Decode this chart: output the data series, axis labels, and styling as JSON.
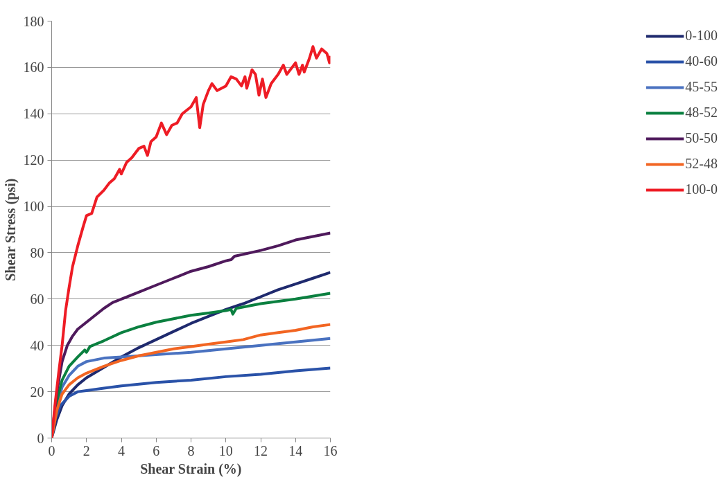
{
  "chart_data": {
    "type": "line",
    "xlabel": "Shear Strain (%)",
    "ylabel": "Shear Stress (psi)",
    "xlim": [
      0,
      16
    ],
    "ylim": [
      0,
      180
    ],
    "xticks": [
      0,
      2,
      4,
      6,
      8,
      10,
      12,
      14,
      16
    ],
    "yticks": [
      0,
      20,
      40,
      60,
      80,
      100,
      120,
      140,
      160,
      180
    ],
    "grid": "y",
    "legend": "right",
    "marker": "none",
    "line_style": "solid",
    "series": [
      {
        "name": "0-100",
        "color": "#1f2a6e",
        "x": [
          0,
          0.3,
          0.6,
          1,
          1.5,
          2,
          3,
          4,
          5,
          6,
          7,
          8,
          9,
          10,
          11,
          12,
          13,
          14,
          15,
          16
        ],
        "values": [
          0,
          8,
          14,
          19,
          23,
          26,
          30.5,
          35,
          39,
          42.5,
          46,
          49.5,
          52.5,
          55.5,
          58,
          61,
          64,
          66.5,
          69,
          71.5
        ]
      },
      {
        "name": "40-60",
        "color": "#2a52a8",
        "x": [
          0,
          0.2,
          0.5,
          1,
          1.5,
          2,
          3,
          4,
          6,
          8,
          10,
          12,
          14,
          16
        ],
        "values": [
          0,
          8,
          14,
          18,
          20,
          20.5,
          21.5,
          22.5,
          24,
          25,
          26.5,
          27.5,
          29,
          30.2
        ]
      },
      {
        "name": "45-55",
        "color": "#4a72c0",
        "x": [
          0,
          0.3,
          0.6,
          1,
          1.5,
          2,
          3,
          4,
          6,
          8,
          10,
          12,
          14,
          16
        ],
        "values": [
          0,
          14,
          22,
          27,
          31,
          33,
          34.5,
          35,
          36,
          37,
          38.5,
          40,
          41.5,
          43
        ]
      },
      {
        "name": "48-52",
        "color": "#0b8040",
        "x": [
          0,
          0.3,
          0.6,
          1,
          1.5,
          1.9,
          2,
          2.2,
          3,
          4,
          5,
          6,
          7,
          8,
          9,
          10,
          10.3,
          10.4,
          10.6,
          12,
          14,
          16
        ],
        "values": [
          0,
          16,
          25,
          31,
          35,
          38,
          37,
          39.5,
          42,
          45.5,
          48,
          50,
          51.5,
          53,
          54,
          55,
          55.5,
          53.5,
          56,
          58,
          60,
          62.5
        ]
      },
      {
        "name": "50-50",
        "color": "#4f1a5c",
        "x": [
          0,
          0.3,
          0.6,
          0.9,
          1.2,
          1.5,
          2,
          2.5,
          3,
          3.5,
          4,
          5,
          6,
          7,
          8,
          9,
          10,
          10.3,
          10.5,
          12,
          13,
          14,
          15,
          16
        ],
        "values": [
          0,
          20,
          33,
          40,
          44,
          47,
          50,
          53,
          56,
          58.5,
          60,
          63,
          66,
          69,
          72,
          74,
          76.5,
          77,
          78.5,
          81,
          83,
          85.5,
          87,
          88.5
        ]
      },
      {
        "name": "52-48",
        "color": "#f26522",
        "x": [
          0,
          0.3,
          0.6,
          1,
          1.5,
          2,
          3,
          4,
          5,
          6,
          7,
          8,
          9,
          10,
          11,
          12,
          13,
          14,
          15,
          16
        ],
        "values": [
          0,
          12,
          19,
          23,
          26,
          28,
          31,
          33.5,
          35.5,
          37,
          38.5,
          39.5,
          40.5,
          41.5,
          42.5,
          44.5,
          45.5,
          46.5,
          48,
          49
        ]
      },
      {
        "name": "100-0",
        "color": "#ee1c25",
        "x": [
          0,
          0.2,
          0.4,
          0.6,
          0.8,
          1,
          1.2,
          1.5,
          1.8,
          2,
          2.3,
          2.6,
          3,
          3.3,
          3.6,
          3.9,
          4,
          4.3,
          4.6,
          5,
          5.3,
          5.5,
          5.7,
          6,
          6.3,
          6.6,
          6.9,
          7.2,
          7.5,
          8,
          8.3,
          8.5,
          8.7,
          9,
          9.2,
          9.5,
          10,
          10.3,
          10.6,
          10.9,
          11.1,
          11.2,
          11.5,
          11.7,
          11.9,
          12.1,
          12.3,
          12.6,
          13,
          13.3,
          13.5,
          14,
          14.2,
          14.4,
          14.5,
          14.8,
          15,
          15.2,
          15.5,
          15.8,
          15.95,
          16
        ],
        "values": [
          0,
          15,
          28,
          40,
          55,
          65,
          74,
          83,
          91,
          96,
          97,
          104,
          107,
          110,
          112,
          116,
          114,
          119,
          121,
          125,
          126,
          122,
          128,
          130,
          136,
          131,
          135,
          136,
          140,
          143,
          147,
          134,
          144,
          150,
          153,
          150,
          152,
          156,
          155,
          152,
          156,
          151,
          159,
          157,
          148,
          155,
          147,
          153,
          157,
          161,
          157,
          162,
          157,
          161,
          158,
          164,
          169,
          164,
          168,
          166,
          162,
          165
        ]
      }
    ]
  }
}
